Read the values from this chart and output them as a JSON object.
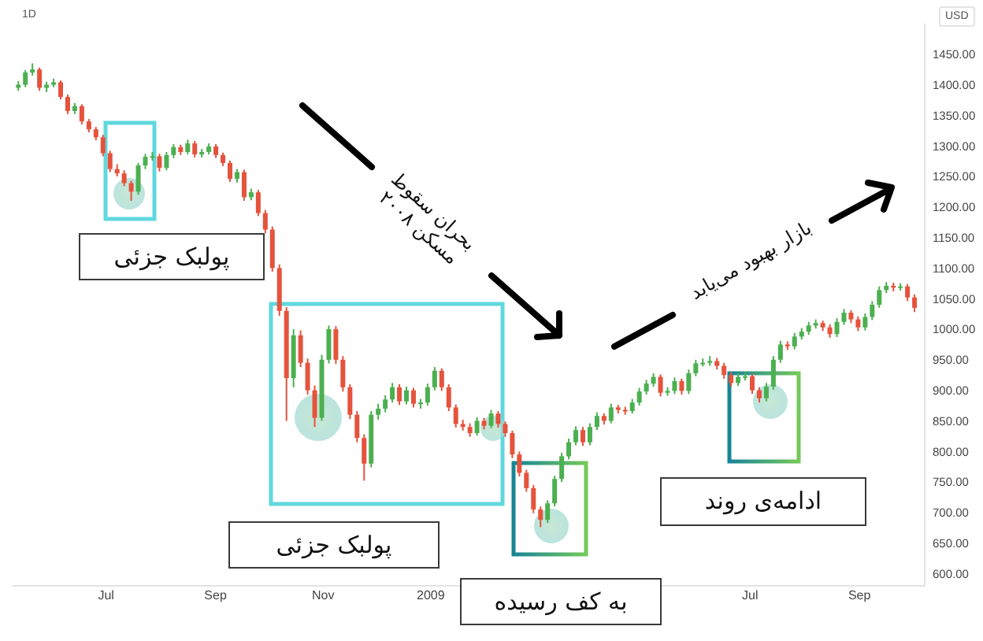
{
  "chart_data": {
    "type": "candlestick",
    "title": "1D",
    "ylabel": "USD",
    "x": [
      "2008-05-12",
      "2008-05-16",
      "2008-05-20",
      "2008-05-24",
      "2008-05-28",
      "2008-06-01",
      "2008-06-05",
      "2008-06-09",
      "2008-06-13",
      "2008-06-17",
      "2008-06-21",
      "2008-06-25",
      "2008-06-29",
      "2008-07-03",
      "2008-07-07",
      "2008-07-11",
      "2008-07-15",
      "2008-07-19",
      "2008-07-23",
      "2008-07-27",
      "2008-07-31",
      "2008-08-04",
      "2008-08-08",
      "2008-08-12",
      "2008-08-16",
      "2008-08-20",
      "2008-08-24",
      "2008-08-28",
      "2008-09-01",
      "2008-09-05",
      "2008-09-09",
      "2008-09-13",
      "2008-09-17",
      "2008-09-21",
      "2008-09-25",
      "2008-09-29",
      "2008-10-03",
      "2008-10-07",
      "2008-10-11",
      "2008-10-15",
      "2008-10-19",
      "2008-10-23",
      "2008-10-27",
      "2008-10-31",
      "2008-11-04",
      "2008-11-08",
      "2008-11-12",
      "2008-11-16",
      "2008-11-20",
      "2008-11-24",
      "2008-11-28",
      "2008-12-02",
      "2008-12-06",
      "2008-12-10",
      "2008-12-14",
      "2008-12-18",
      "2008-12-22",
      "2008-12-26",
      "2008-12-30",
      "2009-01-03",
      "2009-01-07",
      "2009-01-11",
      "2009-01-15",
      "2009-01-19",
      "2009-01-23",
      "2009-01-27",
      "2009-01-31",
      "2009-02-04",
      "2009-02-08",
      "2009-02-12",
      "2009-02-16",
      "2009-02-20",
      "2009-02-24",
      "2009-02-28",
      "2009-03-04",
      "2009-03-08",
      "2009-03-12",
      "2009-03-16",
      "2009-03-20",
      "2009-03-24",
      "2009-03-28",
      "2009-04-01",
      "2009-04-05",
      "2009-04-09",
      "2009-04-13",
      "2009-04-17",
      "2009-04-21",
      "2009-04-25",
      "2009-04-29",
      "2009-05-03",
      "2009-05-07",
      "2009-05-11",
      "2009-05-15",
      "2009-05-19",
      "2009-05-23",
      "2009-05-27",
      "2009-05-31",
      "2009-06-04",
      "2009-06-08",
      "2009-06-12",
      "2009-06-16",
      "2009-06-20",
      "2009-06-24",
      "2009-06-28",
      "2009-07-02",
      "2009-07-06",
      "2009-07-10",
      "2009-07-14",
      "2009-07-18",
      "2009-07-22",
      "2009-07-26",
      "2009-07-30",
      "2009-08-03",
      "2009-08-07",
      "2009-08-11",
      "2009-08-15",
      "2009-08-19",
      "2009-08-23",
      "2009-08-27",
      "2009-08-31",
      "2009-09-04",
      "2009-09-08",
      "2009-09-12",
      "2009-09-16",
      "2009-09-20",
      "2009-09-24",
      "2009-09-28",
      "2009-10-02"
    ],
    "ohlc": [
      [
        1395,
        1406,
        1390,
        1400
      ],
      [
        1400,
        1424,
        1396,
        1420
      ],
      [
        1420,
        1435,
        1415,
        1425
      ],
      [
        1425,
        1428,
        1390,
        1395
      ],
      [
        1395,
        1405,
        1388,
        1400
      ],
      [
        1400,
        1410,
        1396,
        1404
      ],
      [
        1404,
        1407,
        1376,
        1380
      ],
      [
        1380,
        1384,
        1352,
        1357
      ],
      [
        1357,
        1370,
        1352,
        1365
      ],
      [
        1365,
        1368,
        1335,
        1340
      ],
      [
        1340,
        1344,
        1322,
        1327
      ],
      [
        1327,
        1331,
        1309,
        1314
      ],
      [
        1314,
        1318,
        1283,
        1288
      ],
      [
        1288,
        1292,
        1257,
        1262
      ],
      [
        1262,
        1270,
        1250,
        1255
      ],
      [
        1255,
        1260,
        1234,
        1239
      ],
      [
        1239,
        1243,
        1210,
        1225
      ],
      [
        1225,
        1272,
        1220,
        1268
      ],
      [
        1268,
        1287,
        1262,
        1282
      ],
      [
        1282,
        1290,
        1276,
        1283
      ],
      [
        1283,
        1287,
        1258,
        1264
      ],
      [
        1264,
        1290,
        1260,
        1285
      ],
      [
        1285,
        1303,
        1280,
        1298
      ],
      [
        1298,
        1302,
        1285,
        1290
      ],
      [
        1290,
        1310,
        1286,
        1304
      ],
      [
        1304,
        1308,
        1281,
        1286
      ],
      [
        1286,
        1295,
        1281,
        1290
      ],
      [
        1290,
        1304,
        1286,
        1299
      ],
      [
        1299,
        1303,
        1280,
        1285
      ],
      [
        1285,
        1289,
        1267,
        1272
      ],
      [
        1272,
        1276,
        1241,
        1246
      ],
      [
        1246,
        1262,
        1240,
        1257
      ],
      [
        1257,
        1261,
        1210,
        1216
      ],
      [
        1216,
        1230,
        1211,
        1224
      ],
      [
        1224,
        1228,
        1185,
        1190
      ],
      [
        1190,
        1195,
        1157,
        1163
      ],
      [
        1163,
        1168,
        1094,
        1100
      ],
      [
        1100,
        1106,
        1022,
        1030
      ],
      [
        1030,
        1036,
        850,
        920
      ],
      [
        920,
        1000,
        905,
        990
      ],
      [
        990,
        998,
        938,
        945
      ],
      [
        945,
        952,
        893,
        900
      ],
      [
        900,
        908,
        840,
        855
      ],
      [
        855,
        958,
        850,
        950
      ],
      [
        950,
        1006,
        944,
        1000
      ],
      [
        1000,
        1005,
        943,
        950
      ],
      [
        950,
        956,
        898,
        905
      ],
      [
        905,
        910,
        853,
        860
      ],
      [
        860,
        866,
        815,
        822
      ],
      [
        822,
        828,
        752,
        780
      ],
      [
        780,
        866,
        774,
        860
      ],
      [
        860,
        878,
        852,
        870
      ],
      [
        870,
        892,
        864,
        885
      ],
      [
        885,
        912,
        880,
        905
      ],
      [
        905,
        910,
        876,
        882
      ],
      [
        882,
        906,
        877,
        900
      ],
      [
        900,
        904,
        872,
        878
      ],
      [
        878,
        886,
        870,
        880
      ],
      [
        880,
        911,
        875,
        905
      ],
      [
        905,
        938,
        900,
        932
      ],
      [
        932,
        936,
        899,
        905
      ],
      [
        905,
        910,
        866,
        872
      ],
      [
        872,
        877,
        839,
        845
      ],
      [
        845,
        852,
        834,
        840
      ],
      [
        840,
        846,
        824,
        830
      ],
      [
        830,
        856,
        826,
        850
      ],
      [
        850,
        855,
        836,
        842
      ],
      [
        842,
        868,
        838,
        862
      ],
      [
        862,
        866,
        839,
        845
      ],
      [
        845,
        849,
        824,
        830
      ],
      [
        830,
        834,
        789,
        795
      ],
      [
        795,
        800,
        759,
        765
      ],
      [
        765,
        770,
        734,
        740
      ],
      [
        740,
        745,
        699,
        705
      ],
      [
        705,
        710,
        676,
        688
      ],
      [
        688,
        720,
        683,
        715
      ],
      [
        715,
        760,
        710,
        755
      ],
      [
        755,
        798,
        750,
        792
      ],
      [
        792,
        821,
        787,
        815
      ],
      [
        815,
        841,
        810,
        835
      ],
      [
        835,
        840,
        809,
        815
      ],
      [
        815,
        846,
        810,
        840
      ],
      [
        840,
        864,
        835,
        858
      ],
      [
        858,
        862,
        844,
        850
      ],
      [
        850,
        878,
        846,
        872
      ],
      [
        872,
        876,
        862,
        868
      ],
      [
        868,
        873,
        860,
        866
      ],
      [
        866,
        886,
        862,
        880
      ],
      [
        880,
        904,
        875,
        898
      ],
      [
        898,
        917,
        893,
        911
      ],
      [
        911,
        928,
        906,
        922
      ],
      [
        922,
        926,
        890,
        896
      ],
      [
        896,
        905,
        891,
        899
      ],
      [
        899,
        921,
        894,
        915
      ],
      [
        915,
        919,
        893,
        899
      ],
      [
        899,
        934,
        894,
        928
      ],
      [
        928,
        950,
        923,
        944
      ],
      [
        944,
        952,
        939,
        945
      ],
      [
        945,
        956,
        940,
        948
      ],
      [
        948,
        953,
        934,
        940
      ],
      [
        940,
        945,
        919,
        925
      ],
      [
        925,
        930,
        906,
        912
      ],
      [
        912,
        928,
        907,
        922
      ],
      [
        922,
        930,
        916,
        923
      ],
      [
        923,
        927,
        894,
        900
      ],
      [
        900,
        905,
        880,
        887
      ],
      [
        887,
        912,
        882,
        906
      ],
      [
        906,
        956,
        901,
        950
      ],
      [
        950,
        981,
        945,
        975
      ],
      [
        975,
        980,
        966,
        972
      ],
      [
        972,
        994,
        967,
        988
      ],
      [
        988,
        1002,
        983,
        996
      ],
      [
        996,
        1012,
        991,
        1006
      ],
      [
        1006,
        1016,
        1001,
        1010
      ],
      [
        1010,
        1014,
        997,
        1003
      ],
      [
        1003,
        1008,
        986,
        992
      ],
      [
        992,
        1018,
        987,
        1012
      ],
      [
        1012,
        1033,
        1007,
        1027
      ],
      [
        1027,
        1031,
        1010,
        1016
      ],
      [
        1016,
        1021,
        997,
        1003
      ],
      [
        1003,
        1026,
        998,
        1020
      ],
      [
        1020,
        1046,
        1015,
        1040
      ],
      [
        1040,
        1070,
        1035,
        1064
      ],
      [
        1064,
        1077,
        1059,
        1071
      ],
      [
        1071,
        1076,
        1062,
        1068
      ],
      [
        1068,
        1075,
        1063,
        1070
      ],
      [
        1070,
        1074,
        1046,
        1052
      ],
      [
        1052,
        1057,
        1028,
        1035
      ]
    ],
    "colors": [
      "#4caf50",
      "#4caf50",
      "#4caf50",
      "#e5533d",
      "#4caf50",
      "#4caf50",
      "#e5533d",
      "#e5533d",
      "#4caf50",
      "#e5533d",
      "#e5533d",
      "#e5533d",
      "#e5533d",
      "#e5533d",
      "#e5533d",
      "#e5533d",
      "#e5533d",
      "#4caf50",
      "#4caf50",
      "#4caf50",
      "#e5533d",
      "#4caf50",
      "#4caf50",
      "#e5533d",
      "#4caf50",
      "#e5533d",
      "#4caf50",
      "#4caf50",
      "#e5533d",
      "#e5533d",
      "#e5533d",
      "#4caf50",
      "#e5533d",
      "#4caf50",
      "#e5533d",
      "#e5533d",
      "#e5533d",
      "#e5533d",
      "#e5533d",
      "#4caf50",
      "#e5533d",
      "#e5533d",
      "#e5533d",
      "#4caf50",
      "#4caf50",
      "#e5533d",
      "#e5533d",
      "#e5533d",
      "#e5533d",
      "#e5533d",
      "#4caf50",
      "#4caf50",
      "#4caf50",
      "#4caf50",
      "#e5533d",
      "#4caf50",
      "#e5533d",
      "#4caf50",
      "#4caf50",
      "#4caf50",
      "#e5533d",
      "#e5533d",
      "#e5533d",
      "#e5533d",
      "#e5533d",
      "#4caf50",
      "#e5533d",
      "#4caf50",
      "#e5533d",
      "#e5533d",
      "#e5533d",
      "#e5533d",
      "#e5533d",
      "#e5533d",
      "#e5533d",
      "#4caf50",
      "#4caf50",
      "#4caf50",
      "#4caf50",
      "#4caf50",
      "#e5533d",
      "#4caf50",
      "#4caf50",
      "#e5533d",
      "#4caf50",
      "#e5533d",
      "#e5533d",
      "#4caf50",
      "#4caf50",
      "#4caf50",
      "#4caf50",
      "#e5533d",
      "#4caf50",
      "#4caf50",
      "#e5533d",
      "#4caf50",
      "#4caf50",
      "#4caf50",
      "#4caf50",
      "#e5533d",
      "#e5533d",
      "#e5533d",
      "#4caf50",
      "#4caf50",
      "#e5533d",
      "#e5533d",
      "#4caf50",
      "#4caf50",
      "#4caf50",
      "#e5533d",
      "#4caf50",
      "#4caf50",
      "#4caf50",
      "#4caf50",
      "#e5533d",
      "#e5533d",
      "#4caf50",
      "#4caf50",
      "#e5533d",
      "#e5533d",
      "#4caf50",
      "#4caf50",
      "#4caf50",
      "#4caf50",
      "#e5533d",
      "#4caf50",
      "#e5533d",
      "#e5533d"
    ],
    "xlim": [
      "2008-05-09",
      "2009-10-08"
    ],
    "xticks": [
      {
        "value": "2008-07-01",
        "label": "Jul"
      },
      {
        "value": "2008-09-01",
        "label": "Sep"
      },
      {
        "value": "2008-11-01",
        "label": "Nov"
      },
      {
        "value": "2009-01-01",
        "label": "2009"
      },
      {
        "value": "2009-07-01",
        "label": "Jul"
      },
      {
        "value": "2009-09-01",
        "label": "Sep"
      }
    ],
    "ylim": [
      580,
      1500
    ],
    "yticks": [
      {
        "value": 600,
        "label": "600.00"
      },
      {
        "value": 650,
        "label": "650.00"
      },
      {
        "value": 700,
        "label": "700.00"
      },
      {
        "value": 750,
        "label": "750.00"
      },
      {
        "value": 800,
        "label": "800.00"
      },
      {
        "value": 850,
        "label": "850.00"
      },
      {
        "value": 900,
        "label": "900.00"
      },
      {
        "value": 950,
        "label": "950.00"
      },
      {
        "value": 1000,
        "label": "1000.00"
      },
      {
        "value": 1050,
        "label": "1050.00"
      },
      {
        "value": 1100,
        "label": "1100.00"
      },
      {
        "value": 1150,
        "label": "1150.00"
      },
      {
        "value": 1200,
        "label": "1200.00"
      },
      {
        "value": 1250,
        "label": "1250.00"
      },
      {
        "value": 1300,
        "label": "1300.00"
      },
      {
        "value": 1350,
        "label": "1350.00"
      },
      {
        "value": 1400,
        "label": "1400.00"
      },
      {
        "value": 1450,
        "label": "1450.00"
      }
    ],
    "annotations": [
      "پولبک جزئی",
      "بحران سقوط\nمسکن ۲۰۰۸",
      "بازار بهبود می‌یابد",
      "پولبک جزئی",
      "به کف رسیده",
      "ادامه‌ی روند"
    ]
  }
}
